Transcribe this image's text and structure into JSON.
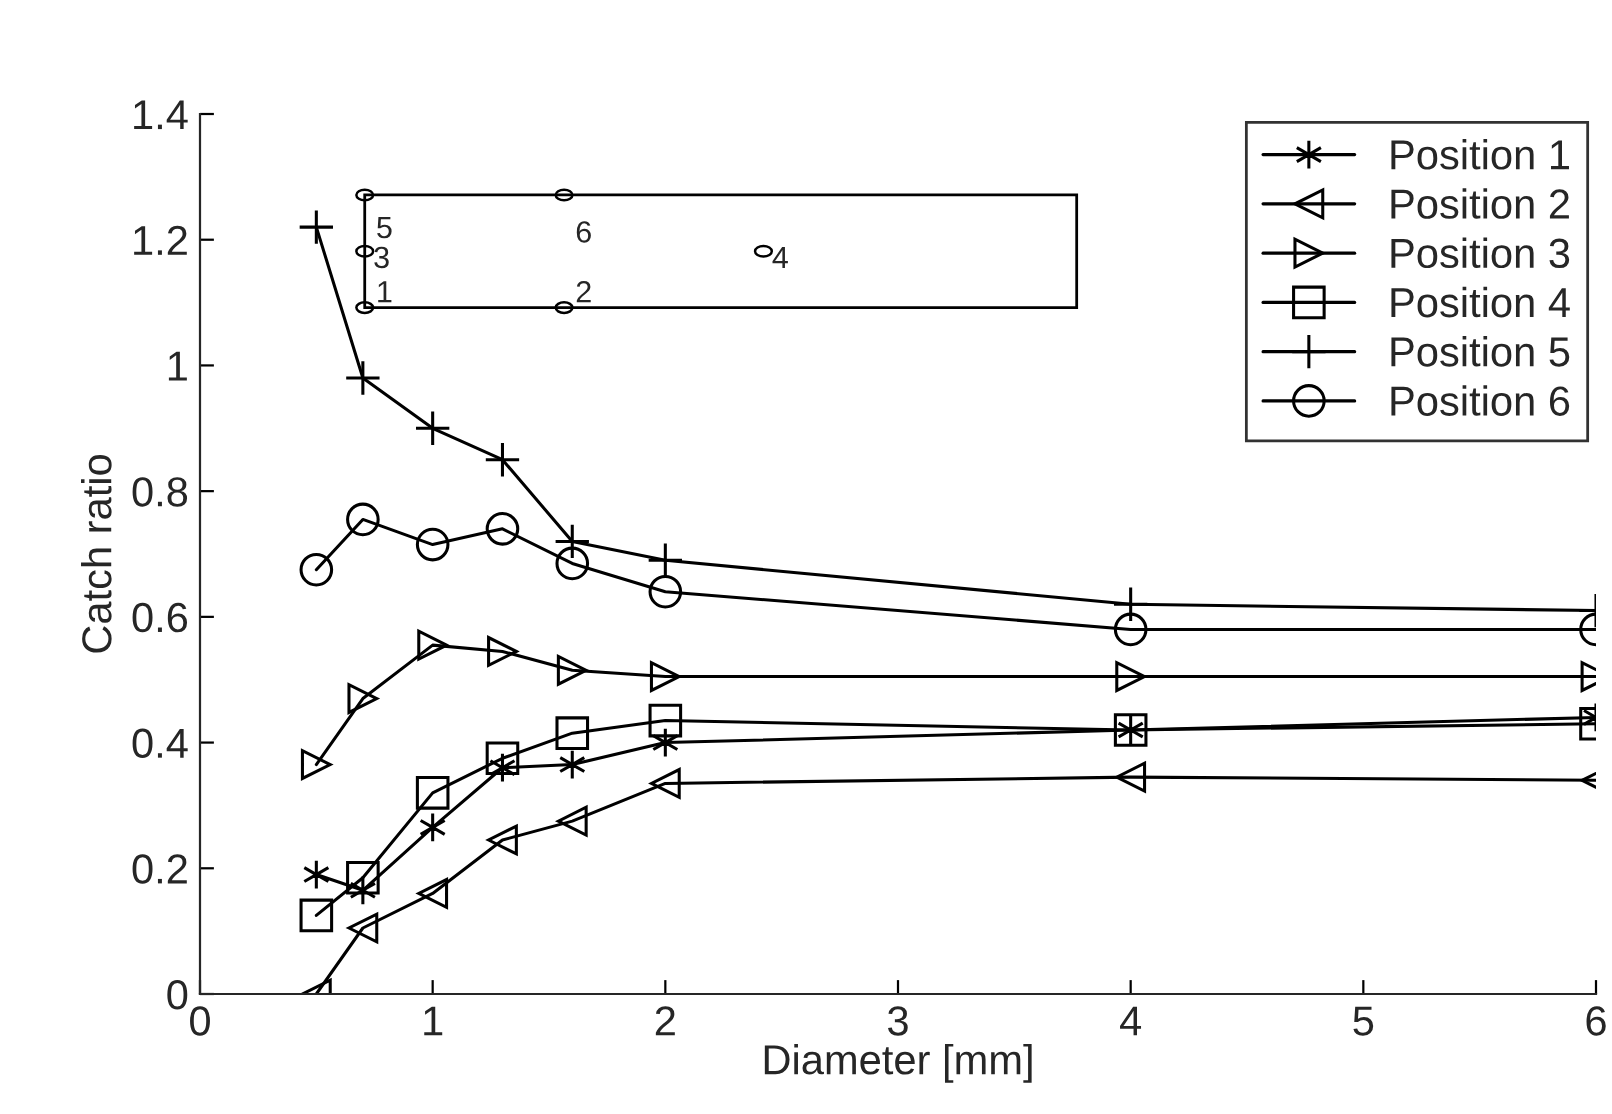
{
  "chart_data": {
    "type": "line",
    "xlabel": "Diameter [mm]",
    "ylabel": "Catch ratio",
    "x": [
      0.5,
      0.7,
      1,
      1.3,
      1.6,
      2,
      4,
      6
    ],
    "series": [
      {
        "name": "Position 1",
        "color": "#000000",
        "marker": "cross",
        "values": [
          0.19,
          0.165,
          0.265,
          0.36,
          0.365,
          0.4,
          0.42,
          0.44
        ]
      },
      {
        "name": "Position 2",
        "color": "#000000",
        "marker": "triangle",
        "values": [
          0.0,
          0.105,
          0.16,
          0.245,
          0.275,
          0.335,
          0.345,
          0.34
        ]
      },
      {
        "name": "Position 3",
        "color": "#000000",
        "marker": "triangle",
        "values": [
          0.365,
          0.47,
          0.555,
          0.545,
          0.515,
          0.505,
          0.505,
          0.505
        ]
      },
      {
        "name": "Position 4",
        "color": "#000000",
        "marker": "square",
        "values": [
          0.125,
          0.185,
          0.32,
          0.375,
          0.415,
          0.435,
          0.42,
          0.43
        ]
      },
      {
        "name": "Position 5",
        "color": "#000000",
        "marker": "cross",
        "values": [
          1.22,
          0.98,
          0.9,
          0.85,
          0.72,
          0.69,
          0.62,
          0.61
        ]
      },
      {
        "name": "Position 6",
        "color": "#000000",
        "marker": "circle",
        "values": [
          0.675,
          0.755,
          0.715,
          0.74,
          0.685,
          0.64,
          0.58,
          0.58
        ]
      }
    ],
    "xlim": [
      0,
      6
    ],
    "xticks": [
      0,
      1,
      2,
      3,
      4,
      5,
      6
    ],
    "ylim": [
      0,
      1.4
    ],
    "yticks": [
      0,
      0.2,
      0.4,
      0.6,
      0.8,
      1,
      1.2,
      1.4
    ],
    "annotations": [
      "1",
      "2",
      "3",
      "4",
      "5",
      "6"
    ],
    "grid": false,
    "legend": "top right",
    "line_style": "solid"
  }
}
